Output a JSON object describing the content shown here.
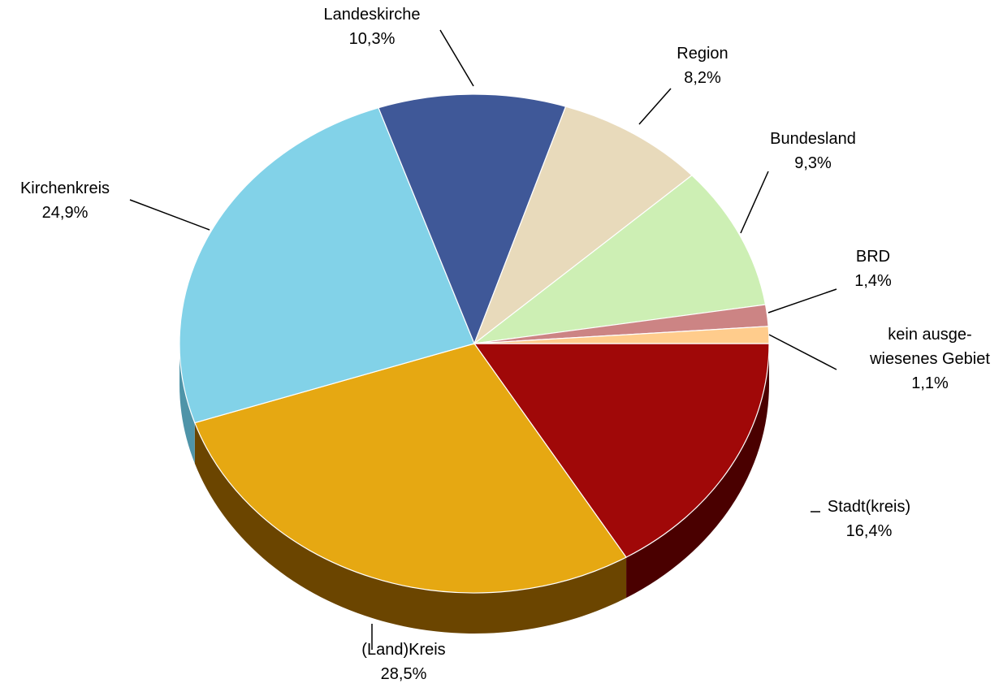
{
  "chart_data": {
    "type": "pie",
    "title": "",
    "style": "3d-tilted",
    "slices": [
      {
        "label": "Stadt(kreis)",
        "label_lines": [
          "Stadt(kreis)"
        ],
        "value": 16.4,
        "value_text": "16,4%",
        "color": "#A00808",
        "side_color": "#4A0000"
      },
      {
        "label": "(Land)Kreis",
        "label_lines": [
          "(Land)Kreis"
        ],
        "value": 28.5,
        "value_text": "28,5%",
        "color": "#E6A812",
        "side_color": "#6B4500"
      },
      {
        "label": "Kirchenkreis",
        "label_lines": [
          "Kirchenkreis"
        ],
        "value": 24.9,
        "value_text": "24,9%",
        "color": "#82D2E8",
        "side_color": "#4F94A8"
      },
      {
        "label": "Landeskirche",
        "label_lines": [
          "Landeskirche"
        ],
        "value": 10.3,
        "value_text": "10,3%",
        "color": "#3F5898",
        "side_color": "#24345E"
      },
      {
        "label": "Region",
        "label_lines": [
          "Region"
        ],
        "value": 8.2,
        "value_text": "8,2%",
        "color": "#E8DABB",
        "side_color": "#A89B7E"
      },
      {
        "label": "Bundesland",
        "label_lines": [
          "Bundesland"
        ],
        "value": 9.3,
        "value_text": "9,3%",
        "color": "#CDEFB4",
        "side_color": "#8EAE7A"
      },
      {
        "label": "BRD",
        "label_lines": [
          "BRD"
        ],
        "value": 1.4,
        "value_text": "1,4%",
        "color": "#CC8484",
        "side_color": "#8C5656"
      },
      {
        "label": "kein ausgewiesenes Gebiet",
        "label_lines": [
          "kein ausge-",
          "wiesenes Gebiet"
        ],
        "value": 1.1,
        "value_text": "1,1%",
        "color": "#FFCC8C",
        "side_color": "#B58B58"
      }
    ]
  }
}
